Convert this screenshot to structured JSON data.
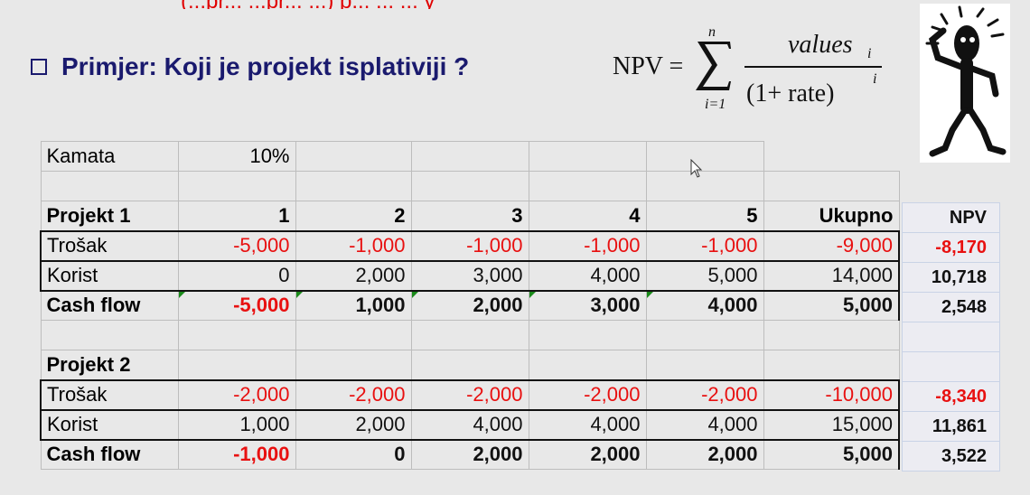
{
  "heading": "Primjer: Koji je projekt isplativiji ?",
  "top_fragment": "(...pr...                ...pr...      ...)  p...          ...   ...          y",
  "formula": {
    "lhs": "NPV =",
    "sum_top": "n",
    "sum_bottom": "i=1",
    "numerator": "values",
    "numerator_sub": "i",
    "denominator": "(1+ rate)",
    "denominator_sup": "i"
  },
  "interest": {
    "label": "Kamata",
    "value": "10%"
  },
  "project1": {
    "title": "Projekt 1",
    "columns": [
      "1",
      "2",
      "3",
      "4",
      "5",
      "Ukupno"
    ],
    "rows": [
      {
        "label": "Trošak",
        "values": [
          "-5,000",
          "-1,000",
          "-1,000",
          "-1,000",
          "-1,000",
          "-9,000"
        ]
      },
      {
        "label": "Korist",
        "values": [
          "0",
          "2,000",
          "3,000",
          "4,000",
          "5,000",
          "14,000"
        ]
      },
      {
        "label": "Cash flow",
        "values": [
          "-5,000",
          "1,000",
          "2,000",
          "3,000",
          "4,000",
          "5,000"
        ]
      }
    ]
  },
  "project2": {
    "title": "Projekt 2",
    "rows": [
      {
        "label": "Trošak",
        "values": [
          "-2,000",
          "-2,000",
          "-2,000",
          "-2,000",
          "-2,000",
          "-10,000"
        ]
      },
      {
        "label": "Korist",
        "values": [
          "1,000",
          "2,000",
          "4,000",
          "4,000",
          "4,000",
          "15,000"
        ]
      },
      {
        "label": "Cash flow",
        "values": [
          "-1,000",
          "0",
          "2,000",
          "2,000",
          "2,000",
          "5,000"
        ]
      }
    ]
  },
  "npv": {
    "header": "NPV",
    "p1": [
      "-8,170",
      "10,718",
      "2,548"
    ],
    "p2": [
      "-8,340",
      "11,861",
      "3,522"
    ]
  },
  "colors": {
    "negative": "#e81010",
    "heading": "#1a1a6e",
    "comment_marker": "#1a8a1a"
  }
}
